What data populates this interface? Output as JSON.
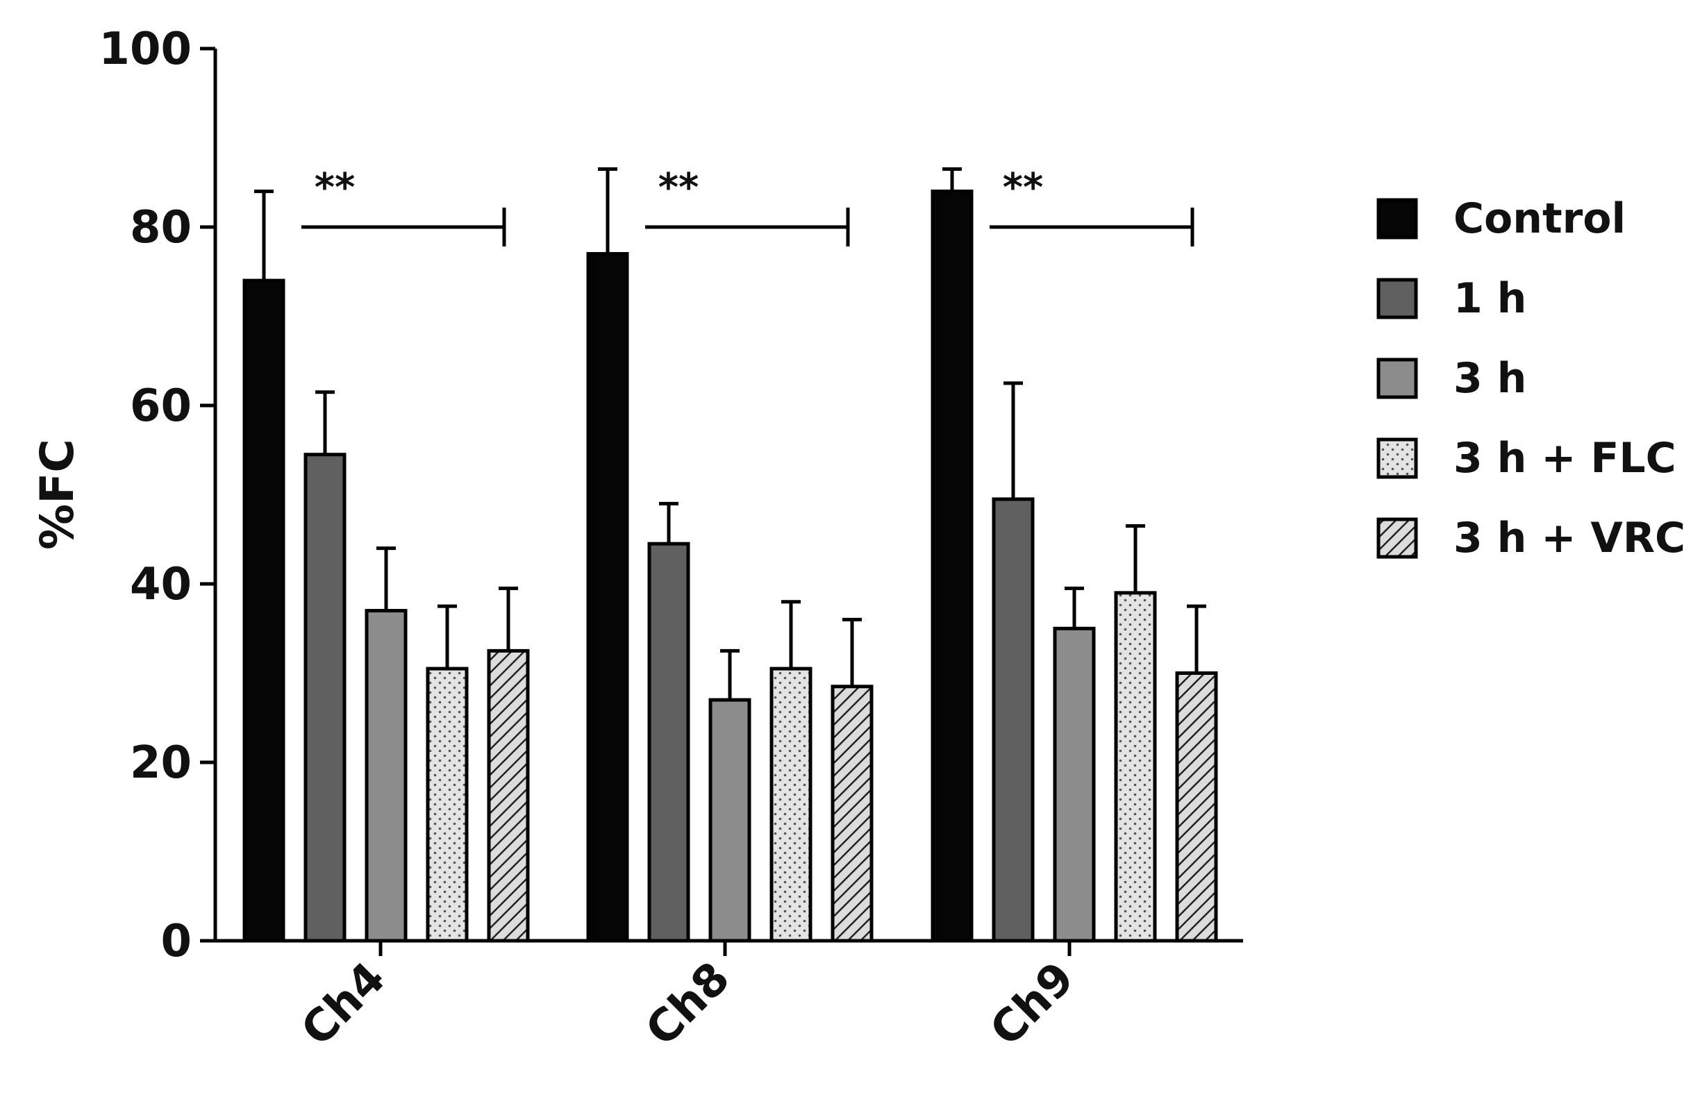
{
  "chart_data": {
    "type": "bar",
    "title": "",
    "xlabel": "",
    "ylabel": "%FC",
    "ylim": [
      0,
      100
    ],
    "yticks": [
      0,
      20,
      40,
      60,
      80,
      100
    ],
    "grid": false,
    "legend_position": "right",
    "categories": [
      "Ch4",
      "Ch8",
      "Ch9"
    ],
    "series": [
      {
        "name": "Control",
        "values": [
          74,
          77,
          84
        ],
        "errors": [
          10,
          9.5,
          2.5
        ],
        "fill": "#050505",
        "pattern": "solid"
      },
      {
        "name": "1 h",
        "values": [
          54.5,
          44.5,
          49.5
        ],
        "errors": [
          7,
          4.5,
          13
        ],
        "fill": "#606060",
        "pattern": "solid"
      },
      {
        "name": "3 h",
        "values": [
          37,
          27,
          35
        ],
        "errors": [
          7,
          5.5,
          4.5
        ],
        "fill": "#8c8c8c",
        "pattern": "solid"
      },
      {
        "name": "3 h + FLC",
        "values": [
          30.5,
          30.5,
          39
        ],
        "errors": [
          7,
          7.5,
          7.5
        ],
        "fill": "#e2e2e2",
        "pattern": "dots"
      },
      {
        "name": "3 h + VRC",
        "values": [
          32.5,
          28.5,
          30
        ],
        "errors": [
          7,
          7.5,
          7.5
        ],
        "fill": "#d9d9d9",
        "pattern": "hatch"
      }
    ],
    "annotations": [
      {
        "category": "Ch4",
        "text": "**",
        "from_series": 1,
        "to_series": 4,
        "y": 80
      },
      {
        "category": "Ch8",
        "text": "**",
        "from_series": 1,
        "to_series": 4,
        "y": 80
      },
      {
        "category": "Ch9",
        "text": "**",
        "from_series": 1,
        "to_series": 4,
        "y": 80
      }
    ]
  }
}
